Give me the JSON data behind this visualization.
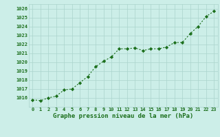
{
  "x": [
    0,
    1,
    2,
    3,
    4,
    5,
    6,
    7,
    8,
    9,
    10,
    11,
    12,
    13,
    14,
    15,
    16,
    17,
    18,
    19,
    20,
    21,
    22,
    23
  ],
  "y": [
    1015.8,
    1015.7,
    1016.0,
    1016.2,
    1016.9,
    1017.0,
    1017.7,
    1018.4,
    1019.5,
    1020.1,
    1020.6,
    1021.5,
    1021.5,
    1021.6,
    1021.3,
    1021.5,
    1021.5,
    1021.7,
    1022.2,
    1022.2,
    1023.2,
    1024.0,
    1025.1,
    1025.7
  ],
  "ylim": [
    1015.0,
    1026.5
  ],
  "yticks": [
    1016,
    1017,
    1018,
    1019,
    1020,
    1021,
    1022,
    1023,
    1024,
    1025,
    1026
  ],
  "xlim": [
    -0.5,
    23.5
  ],
  "xticks": [
    0,
    1,
    2,
    3,
    4,
    5,
    6,
    7,
    8,
    9,
    10,
    11,
    12,
    13,
    14,
    15,
    16,
    17,
    18,
    19,
    20,
    21,
    22,
    23
  ],
  "xlabel": "Graphe pression niveau de la mer (hPa)",
  "line_color": "#1a6e1a",
  "marker": "D",
  "marker_size": 2.2,
  "bg_color": "#cceee8",
  "grid_color": "#aad4cc",
  "tick_color": "#1a6e1a",
  "label_color": "#1a6e1a",
  "xlabel_fontsize": 6.5,
  "tick_fontsize": 5.0,
  "line_width": 0.8
}
